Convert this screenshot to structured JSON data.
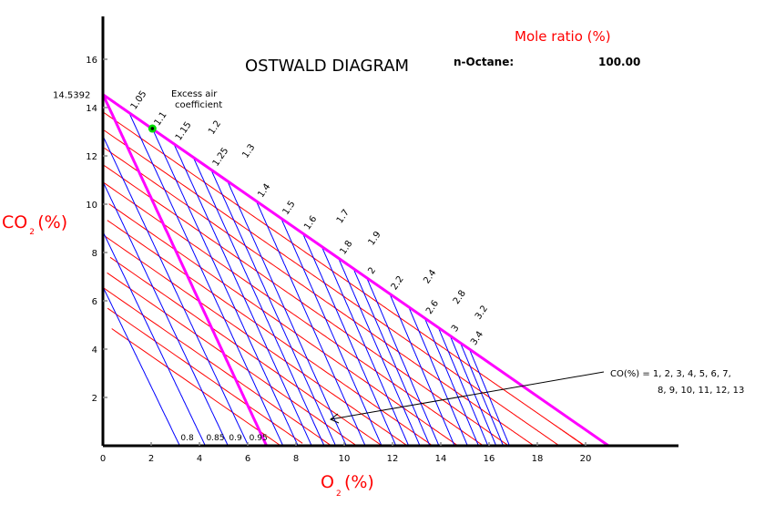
{
  "chart_data": {
    "type": "line",
    "title": "OSTWALD DIAGRAM",
    "fuel_label": "n-Octane:",
    "fuel_value": "100.00",
    "mole_ratio_label": "Mole ratio (%)",
    "xlabel": "O",
    "xlabel_sub": "2",
    "xlabel_unit": "(%)",
    "ylabel": "CO",
    "ylabel_sub": "2",
    "ylabel_unit": "(%)",
    "xlim": [
      0,
      23.8
    ],
    "ylim": [
      0,
      18
    ],
    "x_ticks": [
      "0",
      "2",
      "4",
      "6",
      "8",
      "10",
      "12",
      "14",
      "16",
      "18",
      "20"
    ],
    "y_ticks": [
      "2",
      "4",
      "6",
      "8",
      "10",
      "12",
      "14",
      "16"
    ],
    "co2_max_label": "14.5392",
    "co2_max": 14.5392,
    "o2_max": 20.95,
    "excess_air_title": [
      "Excess air",
      "coefficient"
    ],
    "excess_air_values_top": [
      "1.05",
      "1.1",
      "1.15",
      "1.2",
      "1.25",
      "1.3",
      "1.4",
      "1.5",
      "1.6",
      "1.7",
      "1.8",
      "1.9",
      "2",
      "2.2",
      "2.4",
      "2.6",
      "2.8",
      "3",
      "3.2",
      "3.4"
    ],
    "excess_air_values_bottom": [
      "0.8",
      "0.85",
      "0.9",
      "0.95"
    ],
    "co_values": [
      1,
      2,
      3,
      4,
      5,
      6,
      7,
      8,
      9,
      10,
      11,
      12,
      13
    ],
    "co_annotation": [
      "CO(%) = 1, 2, 3, 4, 5, 6, 7,",
      "8, 9, 10, 11, 12, 13"
    ],
    "measured_point": {
      "o2": 2.05,
      "co2": 13.13
    },
    "colors": {
      "boundary": "#ff00ff",
      "excess_air_lines": "#0000ff",
      "co_lines": "#ff0000",
      "labels_red": "#ff0000",
      "point": "#00dd00"
    }
  }
}
